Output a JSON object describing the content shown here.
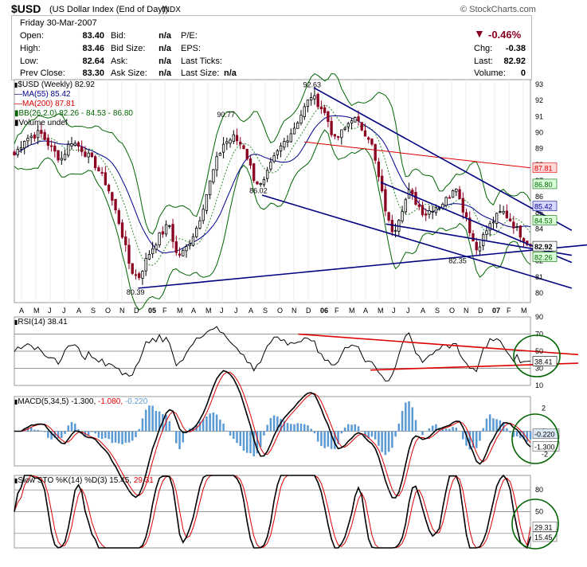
{
  "header": {
    "symbol": "$USD",
    "name": "(US Dollar Index (End of Day))",
    "exchange": "INDX",
    "brand": "© StockCharts.com"
  },
  "quote": {
    "date": "Friday  30-Mar-2007",
    "open_label": "Open:",
    "open": "83.40",
    "high_label": "High:",
    "high": "83.46",
    "low_label": "Low:",
    "low": "82.64",
    "prev_close_label": "Prev Close:",
    "prev_close": "83.30",
    "bid_label": "Bid:",
    "bid": "n/a",
    "bid_size_label": "Bid Size:",
    "bid_size": "n/a",
    "ask_label": "Ask:",
    "ask": "n/a",
    "ask_size_label": "Ask Size:",
    "ask_size": "n/a",
    "pe_label": "P/E:",
    "eps_label": "EPS:",
    "last_ticks_label": "Last Ticks:",
    "last_size_label": "Last Size:",
    "last_size": "n/a",
    "change_pct": "-0.46%",
    "chg_label": "Chg:",
    "chg": "-0.38",
    "last_label": "Last:",
    "last": "82.92",
    "volume_label": "Volume:",
    "volume": "0"
  },
  "colors": {
    "down": "#8b0020",
    "up": "#000000",
    "ma55": "#00008b",
    "ma200": "#dd0000",
    "bb": "#006400",
    "bbmid": "#2e8b2e",
    "trend": "#000080",
    "rsi_trend": "#dd0000",
    "macd_hist": "#5b9bd5",
    "circle": "#006400",
    "badge_blue": "#d8d8ff",
    "badge_red": "#ffd8d8",
    "badge_green": "#d8ffd8"
  },
  "chart_data": [
    {
      "type": "candlestick",
      "legend": [
        {
          "label": "$USD (Weekly) 82.92",
          "color": "#000000"
        },
        {
          "label": "MA(55) 85.42",
          "color": "#00008b"
        },
        {
          "label": "MA(200) 87.81",
          "color": "#dd0000"
        },
        {
          "label": "BB(26,2.0) 82.26 - 84.53 - 86.80",
          "color": "#006400"
        },
        {
          "label": "Volume undef",
          "color": "#000000"
        }
      ],
      "ylim": [
        79.4,
        93.3
      ],
      "y_ticks": [
        "80",
        "81",
        "82",
        "83",
        "84",
        "85",
        "86",
        "87",
        "88",
        "89",
        "90",
        "91",
        "92",
        "93"
      ],
      "x_months": [
        "A",
        "M",
        "J",
        "J",
        "A",
        "S",
        "O",
        "N",
        "D",
        "05",
        "F",
        "M",
        "A",
        "M",
        "J",
        "J",
        "A",
        "S",
        "O",
        "N",
        "D",
        "06",
        "F",
        "M",
        "A",
        "M",
        "J",
        "J",
        "A",
        "S",
        "O",
        "N",
        "D",
        "07",
        "F",
        "M"
      ],
      "annotations": [
        {
          "text": "92.63",
          "t": 0.578,
          "y": 92.63
        },
        {
          "text": "90.77",
          "t": 0.411,
          "y": 90.77
        },
        {
          "text": "86.02",
          "t": 0.474,
          "y": 86.02
        },
        {
          "text": "80.39",
          "t": 0.236,
          "y": 80.39
        },
        {
          "text": "82.35",
          "t": 0.86,
          "y": 82.35
        }
      ],
      "badges": [
        {
          "text": "87.81",
          "y": 87.81,
          "kind": "red"
        },
        {
          "text": "86.80",
          "y": 86.8,
          "kind": "green"
        },
        {
          "text": "85.42",
          "y": 85.42,
          "kind": "blue"
        },
        {
          "text": "84.53",
          "y": 84.53,
          "kind": "green"
        },
        {
          "text": "82.92",
          "y": 82.92,
          "kind": "plain"
        },
        {
          "text": "82.26",
          "y": 82.26,
          "kind": "green"
        }
      ],
      "close_anchors": [
        [
          0.0,
          88.6
        ],
        [
          0.02,
          89.6
        ],
        [
          0.05,
          90.0
        ],
        [
          0.07,
          89.1
        ],
        [
          0.09,
          88.3
        ],
        [
          0.11,
          89.5
        ],
        [
          0.13,
          89.0
        ],
        [
          0.155,
          88.1
        ],
        [
          0.18,
          86.7
        ],
        [
          0.205,
          84.2
        ],
        [
          0.225,
          81.5
        ],
        [
          0.24,
          80.9
        ],
        [
          0.26,
          82.4
        ],
        [
          0.28,
          83.5
        ],
        [
          0.3,
          84.3
        ],
        [
          0.315,
          82.3
        ],
        [
          0.33,
          82.6
        ],
        [
          0.355,
          84.2
        ],
        [
          0.37,
          85.9
        ],
        [
          0.39,
          88.1
        ],
        [
          0.405,
          89.3
        ],
        [
          0.425,
          89.7
        ],
        [
          0.445,
          89.1
        ],
        [
          0.465,
          87.1
        ],
        [
          0.48,
          86.6
        ],
        [
          0.5,
          88.2
        ],
        [
          0.52,
          89.3
        ],
        [
          0.54,
          90.2
        ],
        [
          0.555,
          91.1
        ],
        [
          0.575,
          92.3
        ],
        [
          0.59,
          91.8
        ],
        [
          0.605,
          91.0
        ],
        [
          0.62,
          89.5
        ],
        [
          0.64,
          90.2
        ],
        [
          0.655,
          91.0
        ],
        [
          0.675,
          90.2
        ],
        [
          0.69,
          89.6
        ],
        [
          0.705,
          87.3
        ],
        [
          0.715,
          85.8
        ],
        [
          0.725,
          84.4
        ],
        [
          0.735,
          83.8
        ],
        [
          0.75,
          85.2
        ],
        [
          0.765,
          86.3
        ],
        [
          0.78,
          85.6
        ],
        [
          0.795,
          84.9
        ],
        [
          0.81,
          85.3
        ],
        [
          0.825,
          85.5
        ],
        [
          0.84,
          85.9
        ],
        [
          0.855,
          86.9
        ],
        [
          0.865,
          85.5
        ],
        [
          0.875,
          84.9
        ],
        [
          0.885,
          83.6
        ],
        [
          0.895,
          82.7
        ],
        [
          0.905,
          83.3
        ],
        [
          0.915,
          83.9
        ],
        [
          0.93,
          84.6
        ],
        [
          0.945,
          85.1
        ],
        [
          0.96,
          84.6
        ],
        [
          0.975,
          83.9
        ],
        [
          0.99,
          83.3
        ],
        [
          1.0,
          82.92
        ]
      ]
    },
    {
      "type": "line",
      "title": "RSI(14) 38.41",
      "ylim": [
        10,
        90
      ],
      "y_ticks": [
        "10",
        "30",
        "50",
        "70",
        "90"
      ],
      "current": "38.41",
      "gridlines": [
        30,
        50,
        70
      ]
    },
    {
      "type": "line",
      "title_parts": [
        {
          "text": "MACD(5,34,5) -1.300,",
          "color": "#000000"
        },
        {
          "text": " -1.080,",
          "color": "#dd0000"
        },
        {
          "text": " -0.220",
          "color": "#5b9bd5"
        }
      ],
      "ylim": [
        -3,
        3
      ],
      "y_ticks": [
        "2",
        "0",
        "-2"
      ],
      "badges": [
        "-0.220",
        "-1.300"
      ]
    },
    {
      "type": "line",
      "title_parts": [
        {
          "text": "Slow STO %K(14) %D(3) 15.45,",
          "color": "#000000"
        },
        {
          "text": " 29.31",
          "color": "#dd0000"
        }
      ],
      "ylim": [
        0,
        100
      ],
      "y_ticks": [
        "20",
        "50",
        "80"
      ],
      "badges": [
        "29.31",
        "15.45"
      ]
    }
  ]
}
